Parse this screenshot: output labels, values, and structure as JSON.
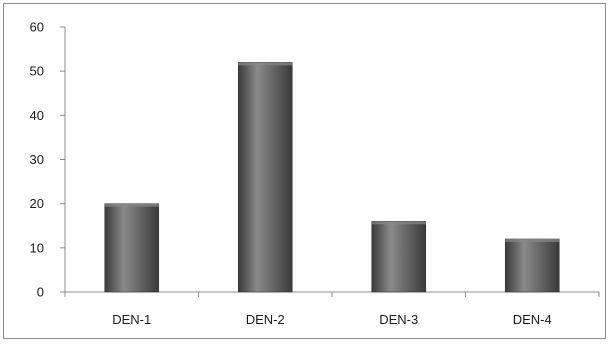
{
  "chart_data": {
    "type": "bar",
    "title": "",
    "xlabel": "",
    "ylabel": "",
    "categories": [
      "DEN-1",
      "DEN-2",
      "DEN-3",
      "DEN-4"
    ],
    "values": [
      20,
      52,
      16,
      12
    ],
    "ylim": [
      0,
      60
    ],
    "yticks": [
      0,
      10,
      20,
      30,
      40,
      50,
      60
    ],
    "grid": false,
    "legend": "none",
    "bar_color": "#5e5e5e",
    "bar_highlight": "#8a8a8a",
    "bar_shadow": "#3a3a3a"
  }
}
